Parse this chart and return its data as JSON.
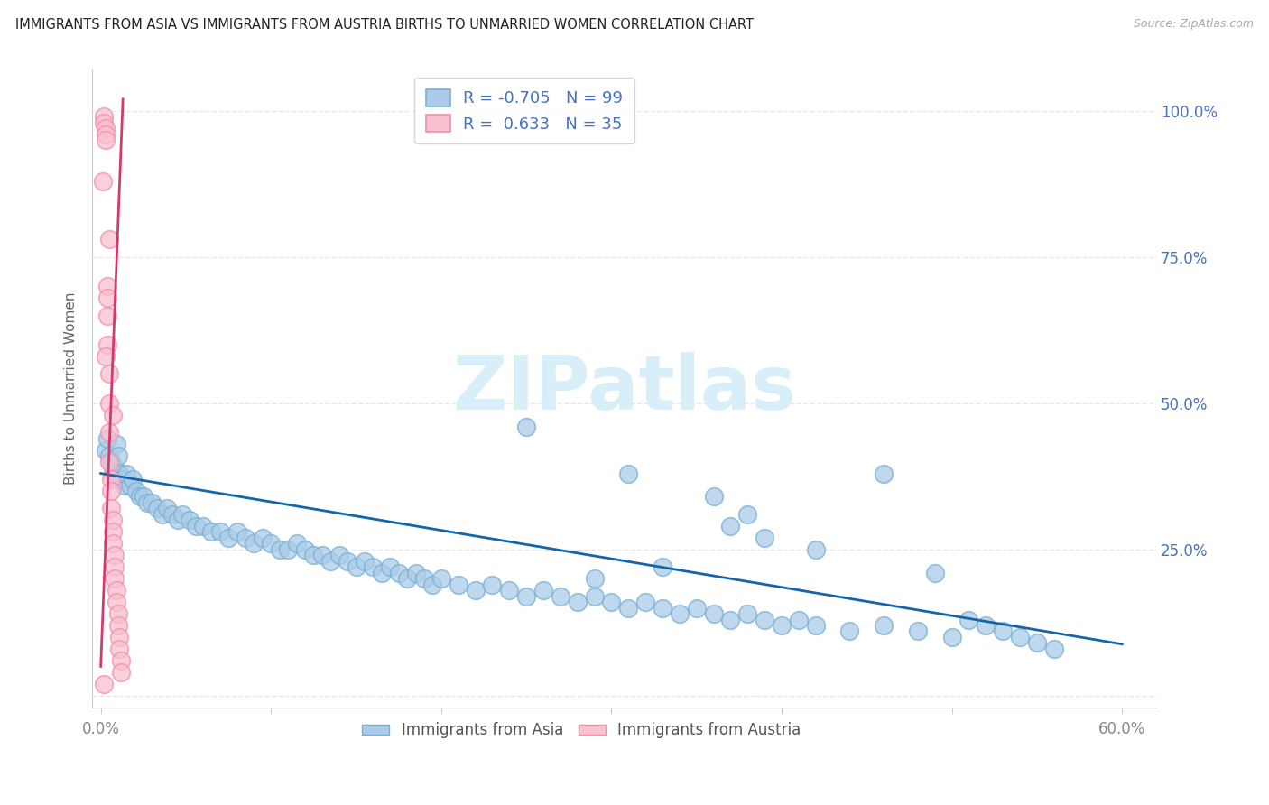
{
  "title": "IMMIGRANTS FROM ASIA VS IMMIGRANTS FROM AUSTRIA BIRTHS TO UNMARRIED WOMEN CORRELATION CHART",
  "source": "Source: ZipAtlas.com",
  "ylabel": "Births to Unmarried Women",
  "xlim": [
    -0.005,
    0.62
  ],
  "ylim": [
    -0.02,
    1.07
  ],
  "xticks": [
    0.0,
    0.1,
    0.2,
    0.3,
    0.4,
    0.5,
    0.6
  ],
  "xticklabels": [
    "0.0%",
    "",
    "",
    "",
    "",
    "",
    "60.0%"
  ],
  "yticks": [
    0.0,
    0.25,
    0.5,
    0.75,
    1.0
  ],
  "yticklabels_right": [
    "",
    "25.0%",
    "50.0%",
    "75.0%",
    "100.0%"
  ],
  "blue_fill": "#aacce8",
  "blue_edge": "#7aafd4",
  "pink_fill": "#f9c0d0",
  "pink_edge": "#f090a8",
  "blue_line_color": "#1565a8",
  "pink_line_color": "#d43870",
  "right_tick_color": "#4472c4",
  "ylabel_color": "#666666",
  "tick_color": "#888888",
  "grid_color": "#e8e8e8",
  "watermark_color": "#d8eef8",
  "background": "#ffffff",
  "blue_R": -0.705,
  "blue_N": 99,
  "pink_R": 0.633,
  "pink_N": 35,
  "blue_trend": [
    0.0,
    0.38,
    0.6,
    0.088
  ],
  "pink_trend": [
    0.0,
    0.05,
    0.013,
    1.02
  ],
  "asia_x": [
    0.003,
    0.004,
    0.005,
    0.006,
    0.007,
    0.008,
    0.009,
    0.01,
    0.011,
    0.012,
    0.014,
    0.015,
    0.017,
    0.019,
    0.021,
    0.023,
    0.025,
    0.027,
    0.03,
    0.033,
    0.036,
    0.039,
    0.042,
    0.045,
    0.048,
    0.052,
    0.056,
    0.06,
    0.065,
    0.07,
    0.075,
    0.08,
    0.085,
    0.09,
    0.095,
    0.1,
    0.105,
    0.11,
    0.115,
    0.12,
    0.125,
    0.13,
    0.135,
    0.14,
    0.145,
    0.15,
    0.155,
    0.16,
    0.165,
    0.17,
    0.175,
    0.18,
    0.185,
    0.19,
    0.195,
    0.2,
    0.21,
    0.22,
    0.23,
    0.24,
    0.25,
    0.26,
    0.27,
    0.28,
    0.29,
    0.3,
    0.31,
    0.32,
    0.33,
    0.34,
    0.35,
    0.36,
    0.37,
    0.38,
    0.39,
    0.4,
    0.41,
    0.42,
    0.44,
    0.46,
    0.48,
    0.5,
    0.51,
    0.52,
    0.53,
    0.54,
    0.55,
    0.56,
    0.25,
    0.31,
    0.36,
    0.39,
    0.29,
    0.33,
    0.46,
    0.49,
    0.37,
    0.42,
    0.38
  ],
  "asia_y": [
    0.42,
    0.44,
    0.41,
    0.4,
    0.38,
    0.39,
    0.43,
    0.41,
    0.38,
    0.37,
    0.36,
    0.38,
    0.36,
    0.37,
    0.35,
    0.34,
    0.34,
    0.33,
    0.33,
    0.32,
    0.31,
    0.32,
    0.31,
    0.3,
    0.31,
    0.3,
    0.29,
    0.29,
    0.28,
    0.28,
    0.27,
    0.28,
    0.27,
    0.26,
    0.27,
    0.26,
    0.25,
    0.25,
    0.26,
    0.25,
    0.24,
    0.24,
    0.23,
    0.24,
    0.23,
    0.22,
    0.23,
    0.22,
    0.21,
    0.22,
    0.21,
    0.2,
    0.21,
    0.2,
    0.19,
    0.2,
    0.19,
    0.18,
    0.19,
    0.18,
    0.17,
    0.18,
    0.17,
    0.16,
    0.17,
    0.16,
    0.15,
    0.16,
    0.15,
    0.14,
    0.15,
    0.14,
    0.13,
    0.14,
    0.13,
    0.12,
    0.13,
    0.12,
    0.11,
    0.12,
    0.11,
    0.1,
    0.13,
    0.12,
    0.11,
    0.1,
    0.09,
    0.08,
    0.46,
    0.38,
    0.34,
    0.27,
    0.2,
    0.22,
    0.38,
    0.21,
    0.29,
    0.25,
    0.31
  ],
  "austria_x": [
    0.001,
    0.002,
    0.002,
    0.003,
    0.003,
    0.003,
    0.004,
    0.004,
    0.004,
    0.004,
    0.005,
    0.005,
    0.005,
    0.005,
    0.006,
    0.006,
    0.006,
    0.007,
    0.007,
    0.007,
    0.008,
    0.008,
    0.008,
    0.009,
    0.009,
    0.01,
    0.01,
    0.011,
    0.011,
    0.012,
    0.012,
    0.003,
    0.005,
    0.007,
    0.002
  ],
  "austria_y": [
    0.88,
    0.99,
    0.98,
    0.97,
    0.96,
    0.95,
    0.7,
    0.68,
    0.65,
    0.6,
    0.55,
    0.5,
    0.45,
    0.4,
    0.37,
    0.35,
    0.32,
    0.3,
    0.28,
    0.26,
    0.24,
    0.22,
    0.2,
    0.18,
    0.16,
    0.14,
    0.12,
    0.1,
    0.08,
    0.06,
    0.04,
    0.58,
    0.78,
    0.48,
    0.02
  ]
}
